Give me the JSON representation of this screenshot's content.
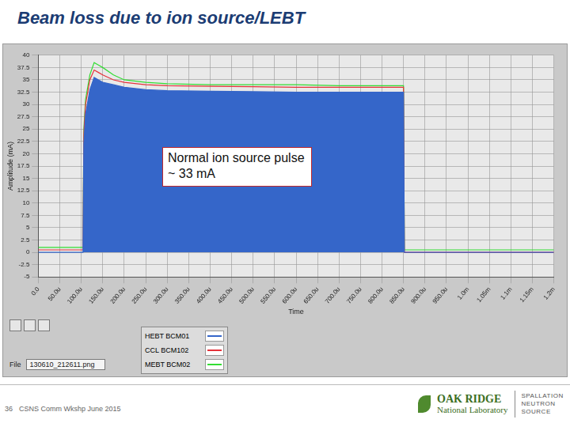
{
  "slide": {
    "title": "Beam loss due to ion source/LEBT",
    "page_number": 36,
    "footer": "CSNS Comm Wkshp June 2015",
    "file_label": "File",
    "file_name": "130610_212611.png",
    "logo": {
      "organization": [
        "OAK RIDGE",
        "National Laboratory"
      ],
      "facility": [
        "SPALLATION",
        "NEUTRON",
        "SOURCE"
      ]
    }
  },
  "chart_data": {
    "type": "line",
    "x_label": "Time",
    "y_label": "Amplitude (mA)",
    "annotations": [
      "Normal ion source pulse",
      "~ 33 mA"
    ],
    "grid": true,
    "legend": "bottom",
    "xlim": [
      0,
      0.0012
    ],
    "xticks": [
      {
        "value": 0,
        "label": "0.0"
      },
      {
        "value": 5e-05,
        "label": "50.0u"
      },
      {
        "value": 0.0001,
        "label": "100.0u"
      },
      {
        "value": 0.00015,
        "label": "150.0u"
      },
      {
        "value": 0.0002,
        "label": "200.0u"
      },
      {
        "value": 0.00025,
        "label": "250.0u"
      },
      {
        "value": 0.0003,
        "label": "300.0u"
      },
      {
        "value": 0.00035,
        "label": "350.0u"
      },
      {
        "value": 0.0004,
        "label": "400.0u"
      },
      {
        "value": 0.00045,
        "label": "450.0u"
      },
      {
        "value": 0.0005,
        "label": "500.0u"
      },
      {
        "value": 0.00055,
        "label": "550.0u"
      },
      {
        "value": 0.0006,
        "label": "600.0u"
      },
      {
        "value": 0.00065,
        "label": "650.0u"
      },
      {
        "value": 0.0007,
        "label": "700.0u"
      },
      {
        "value": 0.00075,
        "label": "750.0u"
      },
      {
        "value": 0.0008,
        "label": "800.0u"
      },
      {
        "value": 0.00085,
        "label": "850.0u"
      },
      {
        "value": 0.0009,
        "label": "900.0u"
      },
      {
        "value": 0.00095,
        "label": "950.0u"
      },
      {
        "value": 0.001,
        "label": "1.0m"
      },
      {
        "value": 0.00105,
        "label": "1.05m"
      },
      {
        "value": 0.0011,
        "label": "1.1m"
      },
      {
        "value": 0.00115,
        "label": "1.15m"
      },
      {
        "value": 0.0012,
        "label": "1.2m"
      }
    ],
    "ylim": [
      -5,
      40
    ],
    "yticks": [
      -5,
      -2.5,
      0,
      2.5,
      5,
      7.5,
      10,
      12.5,
      15,
      17.5,
      20,
      22.5,
      25,
      27.5,
      30,
      32.5,
      35,
      37.5,
      40
    ],
    "x": [
      0,
      5e-05,
      0.0001,
      0.000104,
      0.000106,
      0.00011,
      0.00012,
      0.00013,
      0.00014,
      0.00015,
      0.000175,
      0.0002,
      0.00025,
      0.0003,
      0.0004,
      0.0005,
      0.0006,
      0.0007,
      0.0008,
      0.00085,
      0.000852,
      0.0009,
      0.00095,
      0.001,
      0.00105,
      0.0011,
      0.00115,
      0.0012
    ],
    "series": [
      {
        "name": "HEBT BCM01",
        "color": "#3566c9",
        "values": [
          0,
          0,
          0,
          0,
          22,
          28,
          33,
          35.5,
          35,
          34.5,
          34,
          33.5,
          33,
          32.8,
          32.7,
          32.6,
          32.5,
          32.5,
          32.5,
          32.5,
          0,
          0,
          0,
          0,
          0,
          0,
          0,
          0
        ]
      },
      {
        "name": "CCL BCM102",
        "color": "#e5323a",
        "values": [
          0.5,
          0.5,
          0.5,
          0.5,
          24,
          30,
          35,
          37,
          36.5,
          36,
          35,
          34.5,
          34,
          33.8,
          33.7,
          33.6,
          33.5,
          33.5,
          33.5,
          33.5,
          0,
          0,
          0,
          0,
          0,
          0,
          0,
          0
        ]
      },
      {
        "name": "MEBT BCM02",
        "color": "#33dd33",
        "values": [
          1,
          1,
          1,
          1,
          25,
          31,
          36,
          38.5,
          38,
          37.5,
          36,
          35,
          34.5,
          34.2,
          34,
          34,
          34,
          33.8,
          33.8,
          33.8,
          0.5,
          0.5,
          0.5,
          0.5,
          0.5,
          0.5,
          0.5,
          0.5
        ]
      }
    ]
  }
}
